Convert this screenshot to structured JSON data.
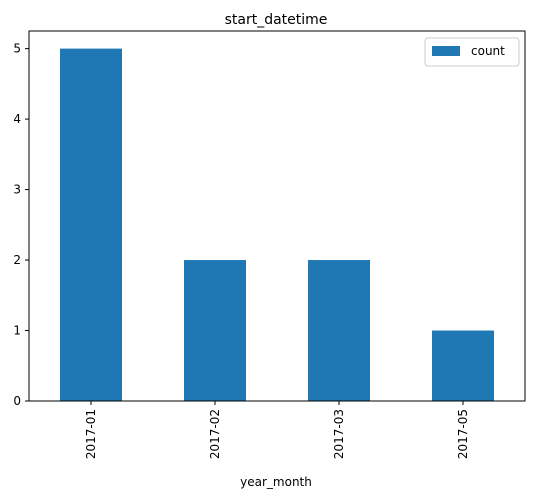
{
  "chart_data": {
    "type": "bar",
    "title": "start_datetime",
    "xlabel": "year_month",
    "ylabel": "",
    "categories": [
      "2017-01",
      "2017-02",
      "2017-03",
      "2017-05"
    ],
    "series": [
      {
        "name": "count",
        "values": [
          5,
          2,
          2,
          1
        ]
      }
    ],
    "ylim": [
      0,
      5.25
    ],
    "yticks": [
      "0",
      "1",
      "2",
      "3",
      "4",
      "5"
    ],
    "grid": false,
    "legend_position": "top-right",
    "colors": {
      "bar": "#1f77b4"
    }
  }
}
